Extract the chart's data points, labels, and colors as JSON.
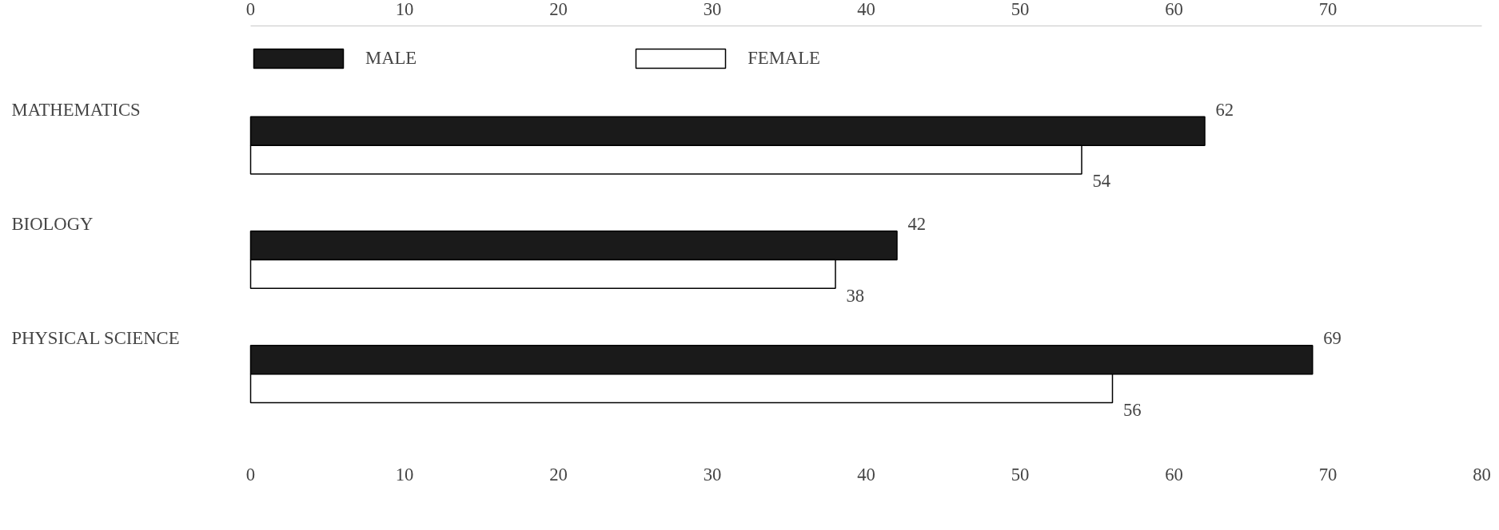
{
  "chart_data": {
    "type": "bar",
    "orientation": "horizontal",
    "categories": [
      "MATHEMATICS",
      "BIOLOGY",
      "PHYSICAL  SCIENCE"
    ],
    "series": [
      {
        "name": "MALE",
        "color": "#1a1a1a",
        "values": [
          62,
          42,
          69
        ]
      },
      {
        "name": "FEMALE",
        "color": "#ffffff",
        "values": [
          54,
          38,
          56
        ]
      }
    ],
    "xlim": [
      0,
      80
    ],
    "xticks": [
      0,
      10,
      20,
      30,
      40,
      50,
      60,
      70,
      80
    ],
    "x2lim": [
      0,
      80
    ],
    "x2ticks": [
      0,
      10,
      20,
      30,
      40,
      50,
      60,
      70
    ],
    "data_labels": true,
    "legend": "top",
    "grid": false
  }
}
